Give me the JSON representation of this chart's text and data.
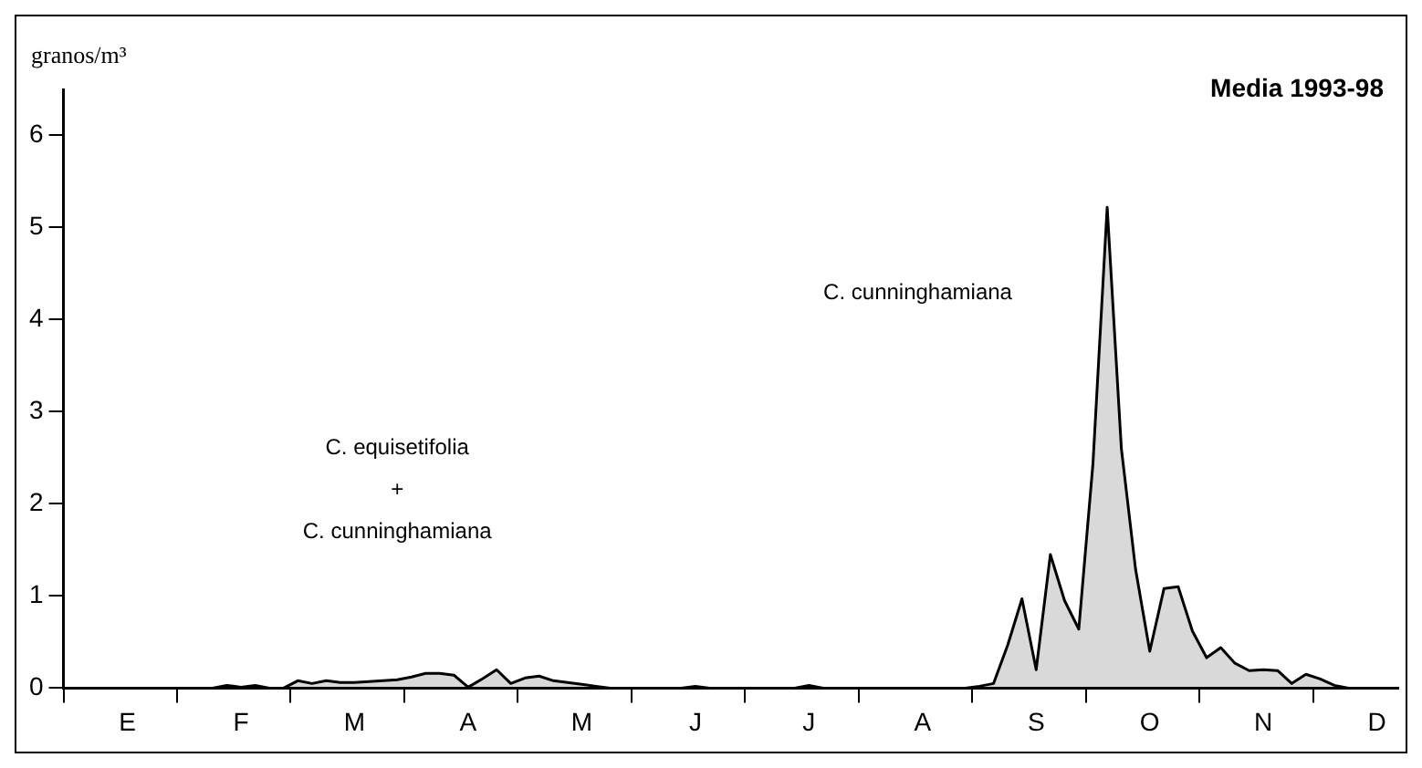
{
  "chart_data": {
    "type": "area",
    "title": "Media 1993-98",
    "ylabel": "granos/m³",
    "categories": [
      null,
      null,
      null,
      null,
      "E",
      null,
      null,
      null,
      null,
      null,
      null,
      null,
      "F",
      null,
      null,
      null,
      null,
      null,
      null,
      null,
      "M",
      null,
      null,
      null,
      null,
      null,
      null,
      null,
      "A",
      null,
      null,
      null,
      null,
      null,
      null,
      null,
      "M",
      null,
      null,
      null,
      null,
      null,
      null,
      null,
      "J",
      null,
      null,
      null,
      null,
      null,
      null,
      null,
      "J",
      null,
      null,
      null,
      null,
      null,
      null,
      null,
      "A",
      null,
      null,
      null,
      null,
      null,
      null,
      null,
      "S",
      null,
      null,
      null,
      null,
      null,
      null,
      null,
      "O",
      null,
      null,
      null,
      null,
      null,
      null,
      null,
      "N",
      null,
      null,
      null,
      null,
      null,
      null,
      null,
      "D",
      null
    ],
    "series": [
      {
        "color": "#000000",
        "values": [
          0,
          0,
          0,
          0,
          0,
          0,
          0,
          0,
          0,
          0,
          0,
          0.03,
          0.01,
          0.03,
          0,
          0,
          0.08,
          0.05,
          0.08,
          0.06,
          0.06,
          0.07,
          0.08,
          0.09,
          0.12,
          0.16,
          0.16,
          0.14,
          0.01,
          0.1,
          0.2,
          0.05,
          0.11,
          0.13,
          0.08,
          0.06,
          0.04,
          0.02,
          0,
          0,
          0,
          0,
          0,
          0,
          0.02,
          0,
          0,
          0,
          0,
          0,
          0,
          0,
          0.03,
          0,
          0,
          0,
          0,
          0,
          0,
          0,
          0,
          0,
          0,
          0,
          0.02,
          0.05,
          0.47,
          0.97,
          0.2,
          1.45,
          0.95,
          0.64,
          2.44,
          5.22,
          2.6,
          1.29,
          0.4,
          1.08,
          1.1,
          0.62,
          0.33,
          0.44,
          0.27,
          0.19,
          0.2,
          0.19,
          0.05,
          0.15,
          0.1,
          0.03,
          0,
          0,
          0,
          0
        ]
      }
    ],
    "ylim": [
      0,
      6.5
    ],
    "yticks": [
      0,
      1,
      2,
      3,
      4,
      5,
      6
    ],
    "grid": false,
    "legend": false,
    "annotations": [
      "C. equisetifolia",
      "+",
      "C. cunninghamiana",
      "C. cunninghamiana"
    ]
  }
}
